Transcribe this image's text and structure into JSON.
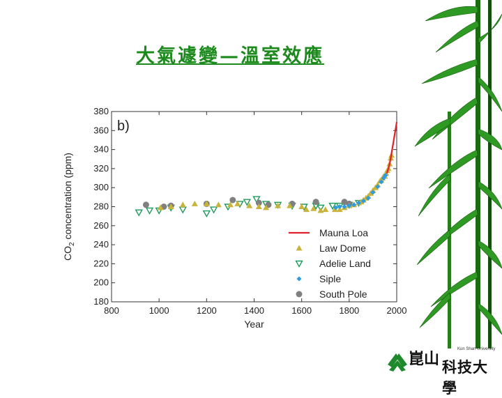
{
  "slide": {
    "title": "大氣遽變—溫室效應"
  },
  "logo": {
    "english": "Kun Shan University",
    "top_chars": "崑山",
    "chinese": "科技大學"
  },
  "colors": {
    "title": "#1c8a1c",
    "mauna_loa": "#e0202a",
    "law_dome": "#c8b43c",
    "adelie": "#1e9a5a",
    "siple": "#2f9be0",
    "south_pole": "#808080"
  },
  "chart_data": {
    "type": "scatter",
    "panel_label": "b)",
    "xlabel": "Year",
    "ylabel_pre": "CO",
    "ylabel_sub": "2",
    "ylabel_post": " concentration (ppm)",
    "xlim": [
      800,
      2000
    ],
    "ylim": [
      180,
      380
    ],
    "xticks": [
      800,
      1000,
      1200,
      1400,
      1600,
      1800,
      2000
    ],
    "yticks": [
      180,
      200,
      220,
      240,
      260,
      280,
      300,
      320,
      340,
      360,
      380
    ],
    "grid": false,
    "legend_position": "lower-right",
    "series": [
      {
        "name": "Mauna Loa",
        "marker": "line",
        "color": "#e0202a",
        "points": [
          [
            1958,
            315
          ],
          [
            1965,
            320
          ],
          [
            1970,
            325
          ],
          [
            1975,
            331
          ],
          [
            1980,
            339
          ],
          [
            1985,
            346
          ],
          [
            1990,
            354
          ],
          [
            1995,
            361
          ],
          [
            2000,
            369
          ]
        ]
      },
      {
        "name": "Law Dome",
        "marker": "triangle-up",
        "color": "#c8b43c",
        "points": [
          [
            1006,
            279
          ],
          [
            1050,
            280
          ],
          [
            1100,
            282
          ],
          [
            1150,
            283
          ],
          [
            1200,
            283
          ],
          [
            1250,
            282
          ],
          [
            1300,
            282
          ],
          [
            1330,
            283
          ],
          [
            1380,
            281
          ],
          [
            1420,
            280
          ],
          [
            1450,
            279
          ],
          [
            1500,
            281
          ],
          [
            1550,
            281
          ],
          [
            1600,
            280
          ],
          [
            1620,
            277
          ],
          [
            1650,
            278
          ],
          [
            1680,
            276
          ],
          [
            1700,
            277
          ],
          [
            1740,
            277
          ],
          [
            1760,
            277
          ],
          [
            1780,
            279
          ],
          [
            1800,
            281
          ],
          [
            1820,
            282
          ],
          [
            1840,
            284
          ],
          [
            1850,
            285
          ],
          [
            1860,
            287
          ],
          [
            1870,
            289
          ],
          [
            1880,
            291
          ],
          [
            1890,
            294
          ],
          [
            1900,
            297
          ],
          [
            1910,
            300
          ],
          [
            1920,
            303
          ],
          [
            1930,
            307
          ],
          [
            1935,
            308
          ],
          [
            1940,
            310
          ],
          [
            1945,
            312
          ],
          [
            1950,
            312
          ],
          [
            1955,
            315
          ],
          [
            1960,
            318
          ],
          [
            1965,
            320
          ],
          [
            1970,
            325
          ],
          [
            1975,
            331
          ],
          [
            1978,
            334
          ]
        ]
      },
      {
        "name": "Adelie Land",
        "marker": "triangle-down",
        "color": "#1e9a5a",
        "points": [
          [
            915,
            274
          ],
          [
            960,
            276
          ],
          [
            1000,
            276
          ],
          [
            1050,
            279
          ],
          [
            1100,
            277
          ],
          [
            1200,
            273
          ],
          [
            1230,
            277
          ],
          [
            1290,
            280
          ],
          [
            1340,
            283
          ],
          [
            1370,
            285
          ],
          [
            1410,
            288
          ],
          [
            1450,
            283
          ],
          [
            1500,
            282
          ],
          [
            1560,
            281
          ],
          [
            1610,
            280
          ],
          [
            1660,
            281
          ],
          [
            1680,
            279
          ],
          [
            1730,
            281
          ],
          [
            1760,
            281
          ],
          [
            1800,
            282
          ],
          [
            1840,
            284
          ]
        ]
      },
      {
        "name": "Siple",
        "marker": "diamond",
        "color": "#2f9be0",
        "points": [
          [
            1744,
            279
          ],
          [
            1760,
            280
          ],
          [
            1780,
            280
          ],
          [
            1800,
            281
          ],
          [
            1820,
            282
          ],
          [
            1840,
            284
          ],
          [
            1860,
            286
          ],
          [
            1880,
            289
          ],
          [
            1900,
            295
          ],
          [
            1920,
            301
          ],
          [
            1935,
            306
          ],
          [
            1945,
            310
          ],
          [
            1953,
            313
          ]
        ]
      },
      {
        "name": "South Pole",
        "marker": "circle",
        "color": "#808080",
        "points": [
          [
            945,
            282
          ],
          [
            1020,
            280
          ],
          [
            1050,
            281
          ],
          [
            1200,
            283
          ],
          [
            1310,
            287
          ],
          [
            1420,
            284
          ],
          [
            1460,
            282
          ],
          [
            1560,
            283
          ],
          [
            1660,
            285
          ],
          [
            1780,
            285
          ],
          [
            1800,
            283
          ]
        ]
      }
    ]
  }
}
